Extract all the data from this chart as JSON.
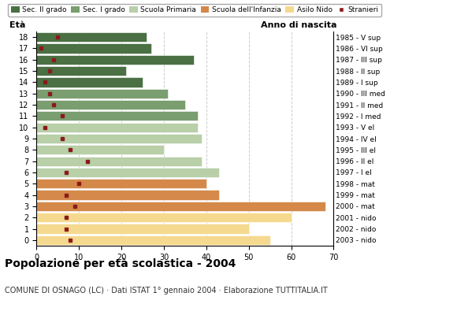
{
  "ages": [
    0,
    1,
    2,
    3,
    4,
    5,
    6,
    7,
    8,
    9,
    10,
    11,
    12,
    13,
    14,
    15,
    16,
    17,
    18
  ],
  "years": [
    "2003 - nido",
    "2002 - nido",
    "2001 - nido",
    "2000 - mat",
    "1999 - mat",
    "1998 - mat",
    "1997 - I el",
    "1996 - II el",
    "1995 - III el",
    "1994 - IV el",
    "1993 - V el",
    "1992 - I med",
    "1991 - II med",
    "1990 - III med",
    "1989 - I sup",
    "1988 - II sup",
    "1987 - III sup",
    "1986 - VI sup",
    "1985 - V sup"
  ],
  "values": [
    55,
    50,
    60,
    68,
    43,
    40,
    43,
    39,
    30,
    39,
    38,
    38,
    35,
    31,
    25,
    21,
    37,
    27,
    26
  ],
  "stranieri": [
    8,
    7,
    7,
    9,
    7,
    10,
    7,
    12,
    8,
    6,
    2,
    6,
    4,
    3,
    2,
    3,
    4,
    1,
    5
  ],
  "colors": {
    "Sec. II grado": "#4a7043",
    "Sec. I grado": "#7a9e6f",
    "Scuola Primaria": "#b8cfa8",
    "Scuola dell'Infanzia": "#d4894a",
    "Asilo Nido": "#f5d98e"
  },
  "bar_colors_by_age": [
    "#f5d98e",
    "#f5d98e",
    "#f5d98e",
    "#d4894a",
    "#d4894a",
    "#d4894a",
    "#b8cfa8",
    "#b8cfa8",
    "#b8cfa8",
    "#b8cfa8",
    "#b8cfa8",
    "#7a9e6f",
    "#7a9e6f",
    "#7a9e6f",
    "#4a7043",
    "#4a7043",
    "#4a7043",
    "#4a7043",
    "#4a7043"
  ],
  "stranieri_color": "#8b1a1a",
  "background_color": "#ffffff",
  "grid_color": "#cccccc",
  "title": "Popolazione per età scolastica - 2004",
  "subtitle": "COMUNE DI OSNAGO (LC) · Dati ISTAT 1° gennaio 2004 · Elaborazione TUTTITALIA.IT",
  "ylabel_left": "Età",
  "ylabel_right": "Anno di nascita",
  "xlim": [
    0,
    70
  ],
  "xticks": [
    0,
    10,
    20,
    30,
    40,
    50,
    60,
    70
  ],
  "legend_labels": [
    "Sec. II grado",
    "Sec. I grado",
    "Scuola Primaria",
    "Scuola dell'Infanzia",
    "Asilo Nido",
    "Stranieri"
  ]
}
